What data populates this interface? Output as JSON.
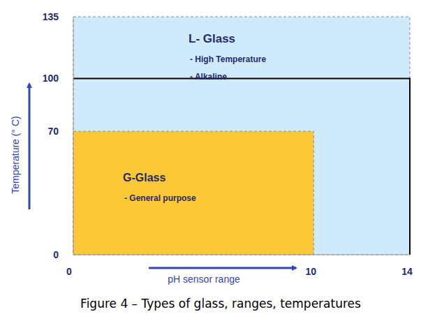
{
  "chart_data": {
    "type": "range",
    "caption": "Figure 4 – Types of glass, ranges, temperatures",
    "x_label": "pH sensor range",
    "y_label": "Temperature (° C)",
    "xlim": [
      0,
      14
    ],
    "xticks": [
      0,
      10,
      14
    ],
    "ylim": [
      0,
      135
    ],
    "yticks": [
      0,
      70,
      100,
      135
    ],
    "grid": false,
    "series": [
      {
        "name": "L- Glass",
        "type": "rect",
        "color": "#cfeafb",
        "annotations": [
          "- High Temperature",
          "- Alkaline"
        ],
        "x": [
          0,
          14
        ],
        "values": [
          0,
          135
        ]
      },
      {
        "name": "G-Glass",
        "type": "rect",
        "color": "#fdc835",
        "annotations": [
          "- General purpose"
        ],
        "x": [
          0,
          10
        ],
        "values": [
          0,
          70
        ]
      },
      {
        "type": "line",
        "color": "#000000",
        "x": [
          0,
          14,
          14
        ],
        "values": [
          100,
          100,
          0
        ]
      }
    ]
  }
}
